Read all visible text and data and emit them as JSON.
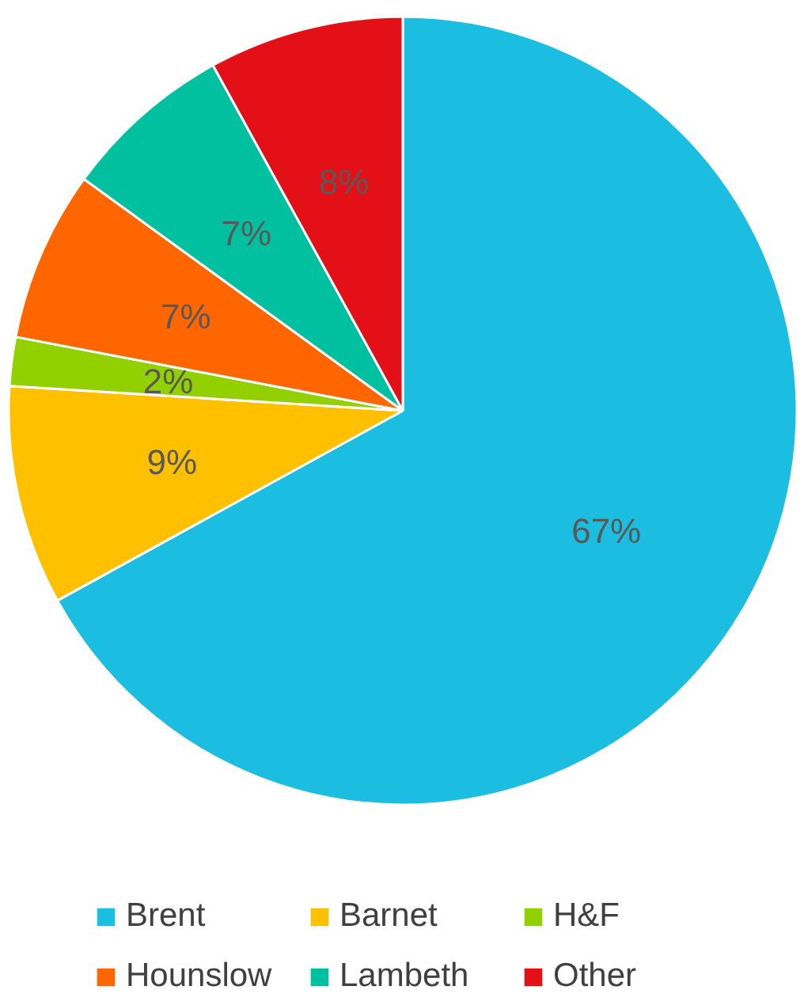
{
  "chart_data": {
    "type": "pie",
    "categories": [
      "Brent",
      "Barnet",
      "H&F",
      "Hounslow",
      "Lambeth",
      "Other"
    ],
    "values": [
      67,
      9,
      2,
      7,
      7,
      8
    ],
    "colors": [
      "#1bbde0",
      "#ffc000",
      "#92d000",
      "#ff6600",
      "#00c0a0",
      "#e31018"
    ],
    "value_labels": [
      "67%",
      "9%",
      "2%",
      "7%",
      "7%",
      "8%"
    ],
    "legend": "bottom"
  }
}
